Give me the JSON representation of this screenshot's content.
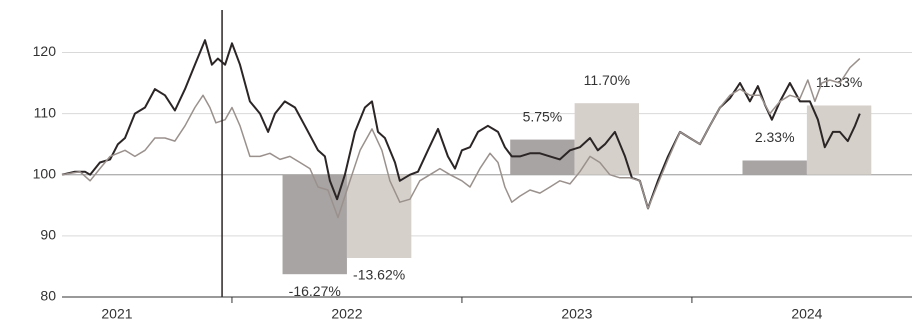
{
  "chart_data": {
    "type": "line",
    "xlim": [
      2021.261,
      2024.957
    ],
    "ylim": [
      80,
      124
    ],
    "yticks": [
      80,
      90,
      100,
      110,
      120
    ],
    "grid": true,
    "reference_line": 100,
    "vertical_line": 2021.957,
    "year_boundaries": [
      2022,
      2023,
      2024
    ],
    "year_labels": [
      {
        "value": 2021.5,
        "label": "2021"
      },
      {
        "value": 2022.5,
        "label": "2022"
      },
      {
        "value": 2023.5,
        "label": "2023"
      },
      {
        "value": 2024.5,
        "label": "2024"
      }
    ],
    "series": [
      {
        "color": "#2b2526",
        "x": [
          2021.261,
          2021.317,
          2021.361,
          2021.383,
          2021.426,
          2021.47,
          2021.504,
          2021.535,
          2021.578,
          2021.622,
          2021.665,
          2021.709,
          2021.752,
          2021.796,
          2021.839,
          2021.883,
          2021.913,
          2021.939,
          2021.97,
          2022.0,
          2022.035,
          2022.078,
          2022.122,
          2022.157,
          2022.187,
          2022.23,
          2022.274,
          2022.317,
          2022.374,
          2022.404,
          2022.426,
          2022.457,
          2022.491,
          2022.535,
          2022.578,
          2022.609,
          2022.635,
          2022.665,
          2022.709,
          2022.73,
          2022.774,
          2022.809,
          2022.852,
          2022.896,
          2022.939,
          2022.97,
          2023.0,
          2023.035,
          2023.07,
          2023.113,
          2023.157,
          2023.187,
          2023.217,
          2023.252,
          2023.296,
          2023.339,
          2023.383,
          2023.426,
          2023.47,
          2023.513,
          2023.557,
          2023.591,
          2023.622,
          2023.665,
          2023.709,
          2023.739,
          2023.774,
          2023.809,
          2023.852,
          2023.896,
          2023.948,
          2023.991,
          2024.035,
          2024.078,
          2024.122,
          2024.165,
          2024.209,
          2024.252,
          2024.287,
          2024.317,
          2024.348,
          2024.383,
          2024.426,
          2024.47,
          2024.513,
          2024.548,
          2024.578,
          2024.613,
          2024.643,
          2024.678,
          2024.709,
          2024.73
        ],
        "values": [
          100,
          100.5,
          100.5,
          100,
          102,
          102.5,
          105,
          106,
          110,
          111,
          114,
          113,
          110.5,
          114,
          118,
          122,
          118,
          119,
          118,
          121.5,
          118,
          112,
          110,
          107,
          110,
          112,
          111,
          108,
          104,
          103,
          99,
          96,
          100,
          107,
          111,
          112,
          107,
          106,
          102,
          99,
          100,
          100.5,
          104,
          107.5,
          103,
          101,
          104,
          104.5,
          107,
          108,
          107,
          104.5,
          103,
          103,
          103.5,
          103.5,
          103,
          102.5,
          104,
          104.5,
          106,
          104,
          105,
          107,
          103,
          99.5,
          99,
          94.5,
          99,
          103,
          107,
          106,
          105,
          108,
          111,
          112.5,
          115,
          112,
          114.5,
          111.5,
          109,
          112,
          115,
          112,
          112,
          109,
          104.5,
          107,
          107,
          105.5,
          108,
          110
        ]
      },
      {
        "color": "#9a918d",
        "x": [
          2021.261,
          2021.339,
          2021.383,
          2021.426,
          2021.47,
          2021.535,
          2021.578,
          2021.622,
          2021.665,
          2021.709,
          2021.752,
          2021.796,
          2021.839,
          2021.874,
          2021.904,
          2021.93,
          2021.97,
          2022.0,
          2022.035,
          2022.078,
          2022.122,
          2022.165,
          2022.209,
          2022.252,
          2022.296,
          2022.339,
          2022.374,
          2022.417,
          2022.461,
          2022.504,
          2022.557,
          2022.609,
          2022.652,
          2022.687,
          2022.73,
          2022.774,
          2022.817,
          2022.861,
          2022.904,
          2022.948,
          2023.0,
          2023.035,
          2023.078,
          2023.122,
          2023.157,
          2023.187,
          2023.217,
          2023.252,
          2023.296,
          2023.339,
          2023.383,
          2023.426,
          2023.47,
          2023.513,
          2023.557,
          2023.6,
          2023.643,
          2023.687,
          2023.73,
          2023.774,
          2023.809,
          2023.852,
          2023.896,
          2023.948,
          2023.991,
          2024.035,
          2024.078,
          2024.122,
          2024.165,
          2024.209,
          2024.252,
          2024.296,
          2024.339,
          2024.383,
          2024.426,
          2024.47,
          2024.504,
          2024.535,
          2024.565,
          2024.6,
          2024.643,
          2024.687,
          2024.73
        ],
        "values": [
          100,
          100.5,
          99,
          101,
          103,
          104,
          103,
          104,
          106,
          106,
          105.5,
          108,
          111,
          113,
          111,
          108.5,
          109,
          111,
          108,
          103,
          103,
          103.5,
          102.5,
          103,
          102,
          101,
          98,
          97.5,
          93,
          98,
          104,
          107.5,
          104,
          99,
          95.5,
          96,
          99,
          100,
          101,
          100,
          99,
          98,
          101,
          103.5,
          102,
          98,
          95.5,
          96.5,
          97.5,
          97,
          98,
          99,
          98.5,
          100.5,
          103,
          102,
          100,
          99.5,
          99.5,
          99,
          94.5,
          98.5,
          102.5,
          107,
          106,
          105,
          108,
          111,
          113,
          114,
          113,
          113,
          110,
          112,
          113,
          112.5,
          115.5,
          112,
          115,
          115.5,
          115,
          117.5,
          119
        ]
      }
    ],
    "bars": [
      {
        "color": "#a8a4a3",
        "x": [
          2022.22,
          2022.5
        ],
        "value": -16.27,
        "value_label": "-16.27%"
      },
      {
        "color": "#d6d0cb",
        "x": [
          2022.5,
          2022.78
        ],
        "value": -13.62,
        "value_label": "-13.62%"
      },
      {
        "color": "#a8a4a3",
        "x": [
          2023.21,
          2023.49
        ],
        "value": 5.75,
        "value_label": "5.75%"
      },
      {
        "color": "#d6d0cb",
        "x": [
          2023.49,
          2023.77
        ],
        "value": 11.7,
        "value_label": "11.70%"
      },
      {
        "color": "#a8a4a3",
        "x": [
          2024.22,
          2024.5
        ],
        "value": 2.33,
        "value_label": "2.33%"
      },
      {
        "color": "#d6d0cb",
        "x": [
          2024.5,
          2024.78
        ],
        "value": 11.33,
        "value_label": "11.33%"
      }
    ]
  }
}
